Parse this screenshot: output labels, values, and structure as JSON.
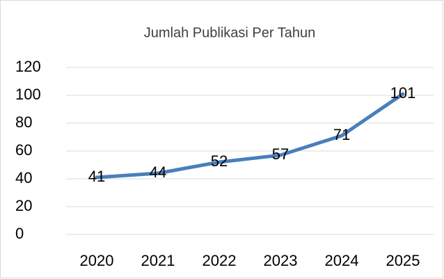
{
  "chart_data": {
    "type": "line",
    "title": "Jumlah Publikasi Per Tahun",
    "categories": [
      "2020",
      "2021",
      "2022",
      "2023",
      "2024",
      "2025"
    ],
    "series": [
      {
        "color": "#4a7ebb",
        "values": [
          41,
          44,
          52,
          57,
          71,
          101
        ]
      }
    ],
    "ylim": [
      0,
      120
    ],
    "yticks": [
      0,
      20,
      40,
      60,
      80,
      100,
      120
    ],
    "grid": true
  }
}
